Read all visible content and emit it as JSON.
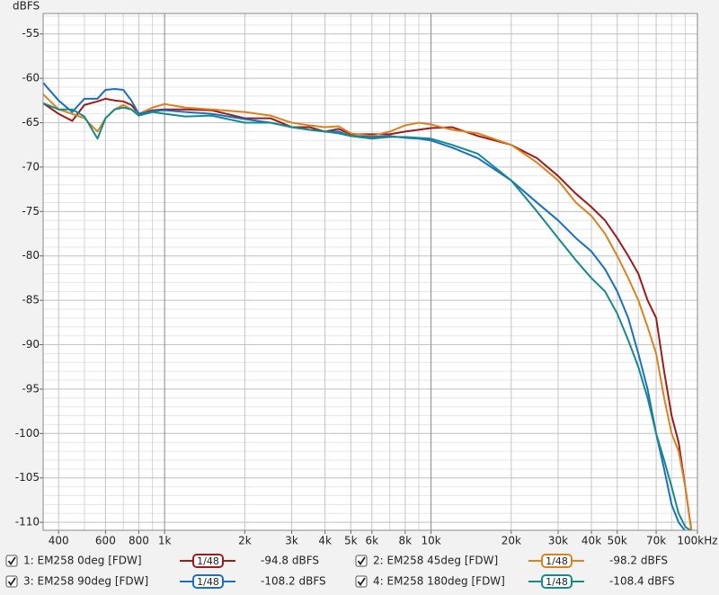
{
  "chart_data": {
    "type": "line",
    "ylabel": "dBFS",
    "log_x": true,
    "grid": true,
    "xlim": [
      350,
      100000
    ],
    "ylim": [
      -110.9,
      -52.7
    ],
    "xticks": [
      400,
      600,
      800,
      {
        "value": 1000,
        "label": "1k"
      },
      {
        "value": 2000,
        "label": "2k"
      },
      {
        "value": 3000,
        "label": "3k"
      },
      {
        "value": 4000,
        "label": "4k"
      },
      {
        "value": 5000,
        "label": "5k"
      },
      {
        "value": 6000,
        "label": "6k"
      },
      {
        "value": 8000,
        "label": "8k"
      },
      {
        "value": 10000,
        "label": "10k"
      },
      {
        "value": 20000,
        "label": "20k"
      },
      {
        "value": 30000,
        "label": "30k"
      },
      {
        "value": 40000,
        "label": "40k"
      },
      {
        "value": 50000,
        "label": "50k"
      },
      {
        "value": 70000,
        "label": "70k"
      },
      {
        "value": 100000,
        "label": "100kHz"
      }
    ],
    "x_minor_ticks": [
      500,
      700,
      900,
      7000,
      9000,
      60000,
      80000,
      90000
    ],
    "yticks": [
      -55,
      -60,
      -65,
      -70,
      -75,
      -80,
      -85,
      -90,
      -95,
      -100,
      -105,
      -110
    ],
    "y_minor_step": 1,
    "x": [
      350,
      400,
      450,
      500,
      560,
      600,
      650,
      700,
      750,
      800,
      900,
      1000,
      1200,
      1500,
      2000,
      2500,
      3000,
      3500,
      4000,
      4500,
      5000,
      6000,
      7000,
      8000,
      9000,
      10000,
      12000,
      15000,
      20000,
      25000,
      30000,
      35000,
      40000,
      45000,
      50000,
      55000,
      60000,
      65000,
      70000,
      75000,
      80000,
      85000,
      90000,
      95000
    ],
    "series": [
      {
        "name": "1: EM258 0deg [FDW]",
        "color": "#9b1c1c",
        "smoothing": "1/48",
        "level": "-94.8 dBFS",
        "values": [
          -62.8,
          -64,
          -64.8,
          -63,
          -62.6,
          -62.3,
          -62.5,
          -62.6,
          -63,
          -64,
          -63.6,
          -63.5,
          -63.5,
          -63.6,
          -64.5,
          -64.5,
          -65.5,
          -65.5,
          -66,
          -65.7,
          -66.3,
          -66.3,
          -66.3,
          -66,
          -65.8,
          -65.6,
          -65.5,
          -66.5,
          -67.5,
          -69,
          -71,
          -73,
          -74.5,
          -76,
          -78,
          -80,
          -82,
          -85,
          -87,
          -93,
          -98,
          -101,
          -106,
          -111
        ]
      },
      {
        "name": "2: EM258 45deg [FDW]",
        "color": "#d9831f",
        "smoothing": "1/48",
        "level": "-98.2 dBFS",
        "values": [
          -61.8,
          -63.5,
          -64,
          -64.5,
          -66,
          -64.5,
          -63.5,
          -63,
          -63.5,
          -64,
          -63.3,
          -62.9,
          -63.3,
          -63.5,
          -63.8,
          -64.2,
          -65,
          -65.3,
          -65.5,
          -65.4,
          -66.2,
          -66.5,
          -66,
          -65.3,
          -65,
          -65.2,
          -65.8,
          -66.2,
          -67.5,
          -69.5,
          -71.5,
          -74,
          -75.5,
          -77.5,
          -80,
          -82.5,
          -85,
          -88,
          -91,
          -96,
          -100,
          -102,
          -106,
          -111
        ]
      },
      {
        "name": "3: EM258 90deg [FDW]",
        "color": "#1a6fc0",
        "smoothing": "1/48",
        "level": "-108.2 dBFS",
        "values": [
          -60.5,
          -62.5,
          -63.8,
          -62.3,
          -62.3,
          -61.3,
          -61.2,
          -61.3,
          -62.5,
          -64,
          -63.7,
          -63.6,
          -63.8,
          -64,
          -64.6,
          -65,
          -65.5,
          -65.8,
          -66,
          -66,
          -66.5,
          -66.6,
          -66.5,
          -66.7,
          -66.8,
          -67,
          -67.8,
          -69,
          -71.5,
          -74,
          -76,
          -78,
          -79.5,
          -81.5,
          -84,
          -87,
          -91,
          -95,
          -100,
          -104,
          -108,
          -110,
          -111,
          null
        ]
      },
      {
        "name": "4: EM258 180deg [FDW]",
        "color": "#168a8a",
        "smoothing": "1/48",
        "level": "-108.4 dBFS",
        "values": [
          -62.8,
          -63.5,
          -63.5,
          -64.3,
          -66.8,
          -64.5,
          -63.5,
          -63.3,
          -63.5,
          -64.2,
          -63.8,
          -64,
          -64.3,
          -64.2,
          -65,
          -65,
          -65.5,
          -65.8,
          -66,
          -66.2,
          -66.5,
          -66.8,
          -66.6,
          -66.6,
          -66.7,
          -66.8,
          -67.5,
          -68.5,
          -71.5,
          -75,
          -78,
          -80.5,
          -82.5,
          -84,
          -86.5,
          -89.5,
          -92.5,
          -96,
          -100,
          -103,
          -106,
          -109,
          -110.5,
          -111
        ]
      }
    ]
  }
}
